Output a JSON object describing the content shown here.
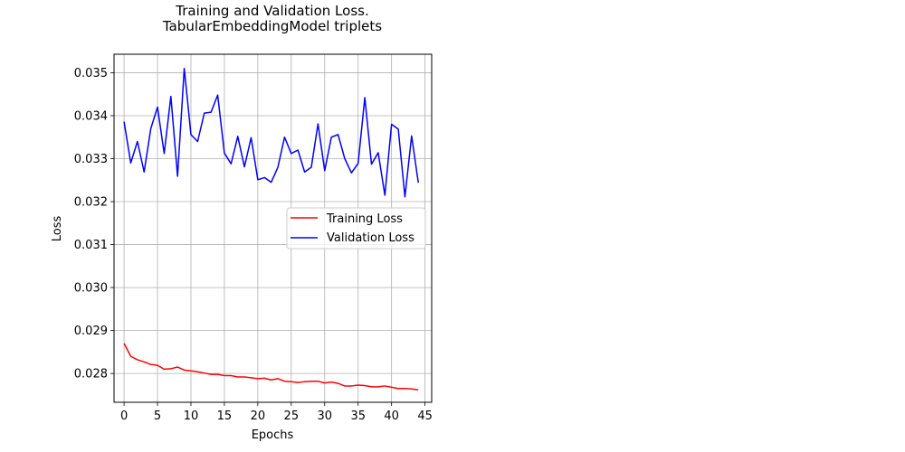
{
  "chart_data": {
    "type": "line",
    "title": [
      "Training and Validation Loss.",
      "TabularEmbeddingModel triplets"
    ],
    "xlabel": "Epochs",
    "ylabel": "Loss",
    "xlim": [
      -1.5,
      46.0
    ],
    "ylim": [
      0.02733,
      0.03543
    ],
    "xticks": [
      0,
      5,
      10,
      15,
      20,
      25,
      30,
      35,
      40,
      45
    ],
    "xtick_labels": [
      "0",
      "5",
      "10",
      "15",
      "20",
      "25",
      "30",
      "35",
      "40",
      "45"
    ],
    "yticks": [
      0.028,
      0.029,
      0.03,
      0.031,
      0.032,
      0.033,
      0.034,
      0.035
    ],
    "ytick_labels": [
      "0.028",
      "0.029",
      "0.030",
      "0.031",
      "0.032",
      "0.033",
      "0.034",
      "0.035"
    ],
    "grid": true,
    "legend": "center-right",
    "x": [
      0,
      1,
      2,
      3,
      4,
      5,
      6,
      7,
      8,
      9,
      10,
      11,
      12,
      13,
      14,
      15,
      16,
      17,
      18,
      19,
      20,
      21,
      22,
      23,
      24,
      25,
      26,
      27,
      28,
      29,
      30,
      31,
      32,
      33,
      34,
      35,
      36,
      37,
      38,
      39,
      40,
      41,
      42,
      43,
      44
    ],
    "series": [
      {
        "name": "Training Loss",
        "color": "#ff0000",
        "values": [
          0.0287,
          0.0284,
          0.02832,
          0.02827,
          0.02821,
          0.02819,
          0.0281,
          0.02811,
          0.02815,
          0.02808,
          0.02806,
          0.02804,
          0.02801,
          0.02798,
          0.02798,
          0.02795,
          0.02795,
          0.02792,
          0.02792,
          0.0279,
          0.02788,
          0.02789,
          0.02785,
          0.02788,
          0.02782,
          0.02781,
          0.02779,
          0.02781,
          0.02782,
          0.02782,
          0.02778,
          0.0278,
          0.02777,
          0.02771,
          0.02771,
          0.02773,
          0.02772,
          0.02769,
          0.02769,
          0.02771,
          0.02768,
          0.02765,
          0.02765,
          0.02764,
          0.02762
        ]
      },
      {
        "name": "Validation Loss",
        "color": "#0000ff",
        "values": [
          0.03386,
          0.0329,
          0.0334,
          0.03269,
          0.0337,
          0.0342,
          0.03312,
          0.03445,
          0.03259,
          0.0351,
          0.03356,
          0.0334,
          0.03406,
          0.03408,
          0.03448,
          0.03313,
          0.03288,
          0.03352,
          0.03281,
          0.03349,
          0.03251,
          0.03256,
          0.03245,
          0.0328,
          0.0335,
          0.03312,
          0.0332,
          0.03269,
          0.0328,
          0.03381,
          0.03272,
          0.0335,
          0.03356,
          0.033,
          0.03267,
          0.03289,
          0.03442,
          0.03287,
          0.03314,
          0.03215,
          0.0338,
          0.03369,
          0.03211,
          0.03353,
          0.03244
        ]
      }
    ]
  }
}
